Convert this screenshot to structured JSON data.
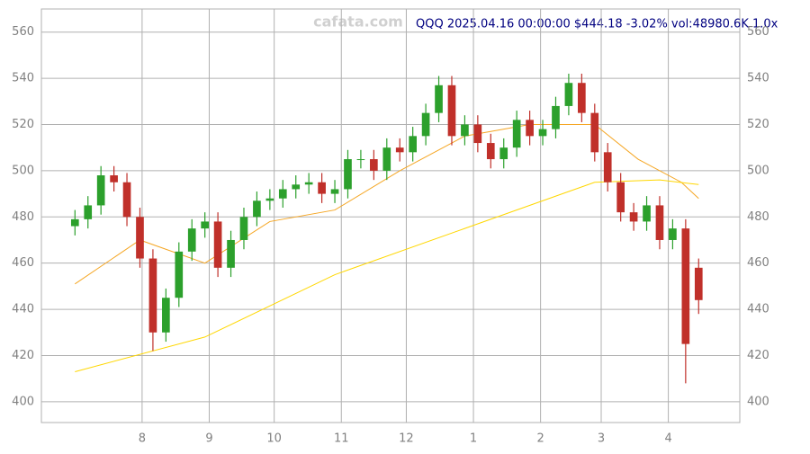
{
  "chart_data": {
    "type": "candlestick",
    "title": "QQQ 2025.04.16 00:00:00 $444.18 -3.02% vol:48980.6K 1.0x",
    "watermark": "cafata.com",
    "up_color": "#2ca02c",
    "down_color": "#c0302a",
    "x": [
      0,
      6,
      12,
      18,
      24,
      30,
      36,
      42,
      48,
      54,
      60,
      66,
      72,
      78,
      84,
      90,
      96,
      102,
      108,
      114,
      120,
      126,
      132,
      138,
      144,
      150,
      156,
      162,
      168,
      174,
      180,
      186,
      192,
      198,
      204,
      210,
      216,
      222,
      228,
      234,
      240,
      246,
      252,
      258,
      264,
      270,
      276,
      282,
      288
    ],
    "open": [
      476,
      479,
      485,
      498,
      495,
      480,
      462,
      430,
      445,
      465,
      475,
      478,
      458,
      470,
      480,
      487,
      488,
      492,
      494,
      495,
      490,
      492,
      505,
      505,
      500,
      510,
      508,
      515,
      525,
      537,
      515,
      520,
      512,
      505,
      510,
      522,
      515,
      518,
      528,
      538,
      525,
      508,
      495,
      482,
      478,
      485,
      470,
      475,
      458
    ],
    "high": [
      483,
      489,
      502,
      502,
      499,
      484,
      466,
      449,
      469,
      479,
      482,
      482,
      474,
      484,
      491,
      492,
      496,
      498,
      499,
      499,
      496,
      509,
      509,
      509,
      514,
      514,
      519,
      529,
      541,
      541,
      524,
      524,
      516,
      514,
      526,
      526,
      522,
      532,
      542,
      542,
      529,
      512,
      499,
      486,
      489,
      489,
      479,
      479,
      462
    ],
    "low": [
      472,
      475,
      481,
      491,
      476,
      458,
      422,
      426,
      441,
      461,
      471,
      454,
      454,
      466,
      476,
      483,
      484,
      488,
      490,
      486,
      486,
      488,
      501,
      496,
      496,
      504,
      504,
      511,
      521,
      511,
      511,
      508,
      501,
      501,
      506,
      511,
      511,
      514,
      524,
      521,
      504,
      491,
      478,
      474,
      474,
      466,
      466,
      408,
      438
    ],
    "close": [
      479,
      485,
      498,
      495,
      480,
      462,
      430,
      445,
      465,
      475,
      478,
      458,
      470,
      480,
      487,
      488,
      492,
      494,
      495,
      490,
      492,
      505,
      505,
      500,
      510,
      508,
      515,
      525,
      537,
      515,
      520,
      512,
      505,
      510,
      522,
      515,
      518,
      528,
      538,
      525,
      508,
      495,
      482,
      478,
      485,
      470,
      475,
      425,
      444
    ],
    "series": [
      {
        "color": "#f5a623",
        "x": [
          0,
          30,
          60,
          90,
          120,
          150,
          180,
          210,
          240,
          260,
          280,
          288
        ],
        "values": [
          451,
          470,
          460,
          478,
          483,
          500,
          515,
          520,
          520,
          505,
          495,
          488
        ]
      },
      {
        "color": "#ffd700",
        "x": [
          0,
          60,
          120,
          180,
          240,
          270,
          288
        ],
        "values": [
          413,
          428,
          455,
          475,
          495,
          496,
          494
        ]
      }
    ],
    "xlim": [
      -15.5,
      307
    ],
    "ylim": [
      391,
      570
    ],
    "xticks": [
      {
        "value": 31,
        "label": "8"
      },
      {
        "value": 62,
        "label": "9"
      },
      {
        "value": 92,
        "label": "10"
      },
      {
        "value": 123,
        "label": "11"
      },
      {
        "value": 153,
        "label": "12"
      },
      {
        "value": 184,
        "label": "1"
      },
      {
        "value": 215,
        "label": "2"
      },
      {
        "value": 243,
        "label": "3"
      },
      {
        "value": 274,
        "label": "4"
      }
    ],
    "yticks": [
      400,
      420,
      440,
      460,
      480,
      500,
      520,
      540,
      560
    ],
    "grid": true
  }
}
